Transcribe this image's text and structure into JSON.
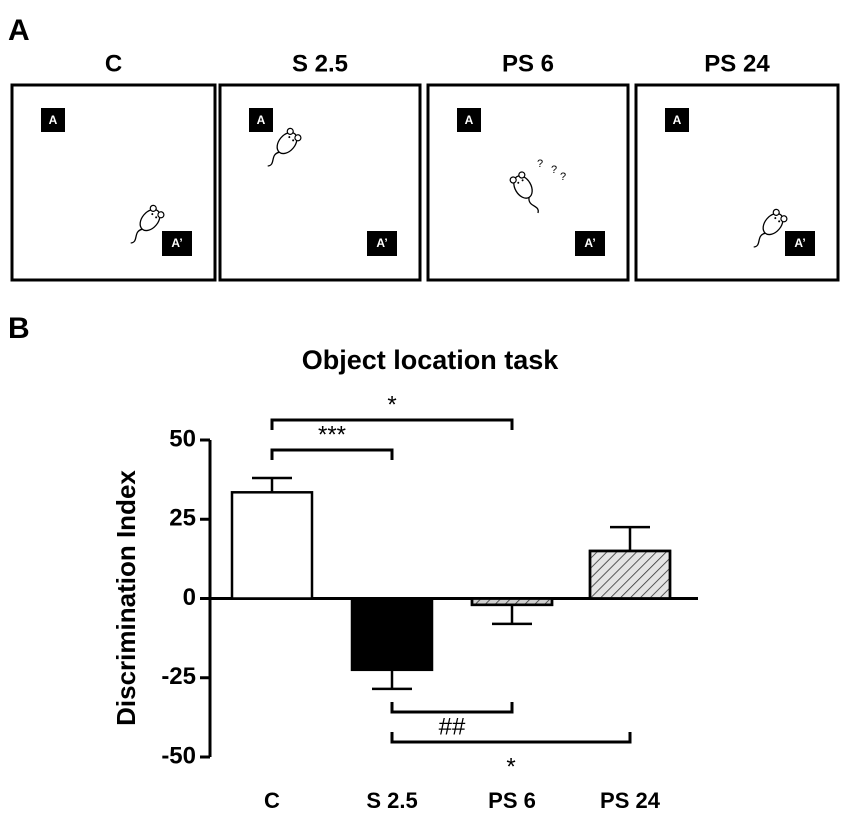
{
  "panel_a": {
    "label": "A",
    "conditions": [
      "C",
      "S 2.5",
      "PS 6",
      "PS 24"
    ],
    "object_labels": [
      "A",
      "A’"
    ],
    "question_marks": [
      "?",
      "?",
      "?"
    ]
  },
  "panel_b": {
    "label": "B"
  },
  "chart_data": {
    "type": "bar",
    "title": "Object location task",
    "y_label": "Discrimination Index",
    "categories": [
      "C",
      "S 2.5",
      "PS 6",
      "PS 24"
    ],
    "values": [
      33.5,
      -22.5,
      -2,
      15
    ],
    "errors": [
      4.5,
      6,
      6,
      7.5
    ],
    "colors": [
      "#ffffff",
      "#000000",
      "#d0d0d0",
      "#e4e4e4"
    ],
    "hatch": [
      false,
      false,
      true,
      true
    ],
    "ylim": [
      -50,
      50
    ],
    "yticks": [
      50,
      25,
      0,
      -25,
      -50
    ],
    "grid": false,
    "annotations": [
      {
        "from": "C",
        "to": "S 2.5",
        "label": "***"
      },
      {
        "from": "C",
        "to": "PS 6",
        "label": "*"
      },
      {
        "from": "S 2.5",
        "to": "PS 6",
        "label": "##"
      },
      {
        "from": "S 2.5",
        "to": "PS 24",
        "label": "*"
      }
    ]
  }
}
